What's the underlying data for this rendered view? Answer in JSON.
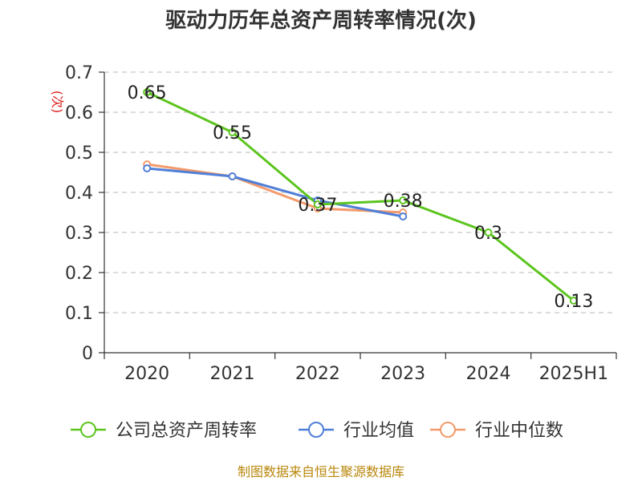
{
  "chart_data": {
    "type": "line",
    "title": "驱动力历年总资产周转率情况(次)",
    "ylabel": "(次)",
    "xlabel": "",
    "categories": [
      "2020",
      "2021",
      "2022",
      "2023",
      "2024",
      "2025H1"
    ],
    "ylim": [
      0,
      0.7
    ],
    "yticks": [
      "0",
      "0.1",
      "0.2",
      "0.3",
      "0.4",
      "0.5",
      "0.6",
      "0.7"
    ],
    "grid": true,
    "legend_position": "bottom",
    "series": [
      {
        "name": "公司总资产周转率",
        "color": "#5cc51e",
        "values": [
          0.65,
          0.55,
          0.37,
          0.38,
          0.3,
          0.13
        ],
        "labels": [
          "0.65",
          "0.55",
          "0.37",
          "0.38",
          "0.3",
          "0.13"
        ]
      },
      {
        "name": "行业均值",
        "color": "#4f7fd8",
        "values": [
          0.46,
          0.44,
          0.38,
          0.34,
          null,
          null
        ]
      },
      {
        "name": "行业中位数",
        "color": "#f39a6b",
        "values": [
          0.47,
          0.44,
          0.36,
          0.35,
          null,
          null
        ]
      }
    ],
    "source": "制图数据来自恒生聚源数据库"
  }
}
